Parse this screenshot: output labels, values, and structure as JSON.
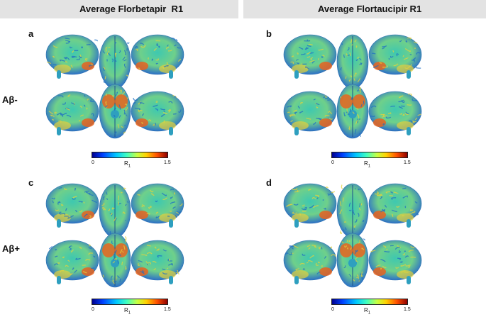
{
  "columns": [
    {
      "title": "Average Florbetapir  R1"
    },
    {
      "title": "Average Flortaucipir R1"
    }
  ],
  "rows": [
    {
      "label": "Aβ-"
    },
    {
      "label": "Aβ+"
    }
  ],
  "panels": [
    {
      "letter": "a"
    },
    {
      "letter": "b"
    },
    {
      "letter": "c"
    },
    {
      "letter": "d"
    }
  ],
  "colorbar": {
    "min": "0",
    "max": "1.5",
    "label": "R",
    "label_sub": "1"
  },
  "colors": {
    "low": "#1e5ad6",
    "mid": "#3ec8b0",
    "high": "#e2d23c",
    "hot": "#e8641e"
  }
}
